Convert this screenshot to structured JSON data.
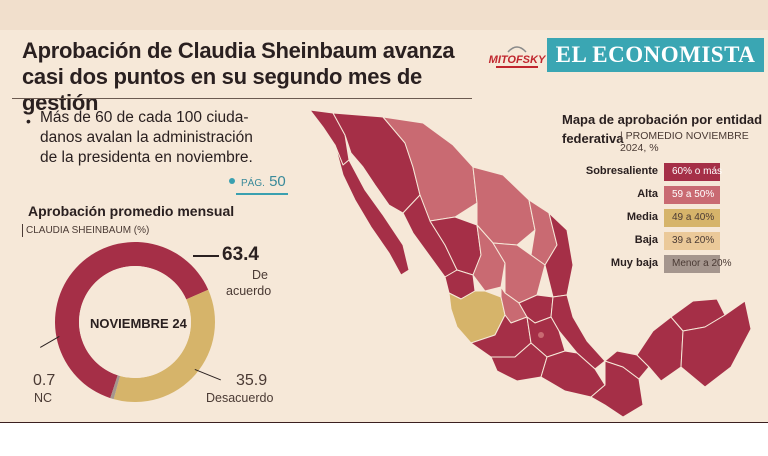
{
  "header": {
    "title_line1": "Aprobación de Claudia Sheinbaum avanza",
    "title_line2": "casi dos puntos en su segundo mes de gestión",
    "logo_mitofsky": "MITOFSKY",
    "logo_economista": "EL ECONOMISTA"
  },
  "bullet": {
    "line1": "Más de 60 de cada 100 ciuda-",
    "line2": "danos avalan la administración",
    "line3": "de la presidenta en noviembre.",
    "page_prefix": "PÁG.",
    "page_number": "50"
  },
  "colors": {
    "sobresaliente": "#a52f47",
    "alta": "#c96a72",
    "media": "#d6b46a",
    "baja": "#ebc999",
    "muy_baja": "#a5968e",
    "accent": "#3aa6b3"
  },
  "chart_data": [
    {
      "type": "pie",
      "title": "Aprobación promedio mensual",
      "subtitle": "CLAUDIA SHEINBAUM (%)",
      "center_label": "NOVIEMBRE 24",
      "slices": [
        {
          "label": "De acuerdo",
          "value": 63.4,
          "value_text": "63.4",
          "color": "#a52f47"
        },
        {
          "label": "Desacuerdo",
          "value": 35.9,
          "value_text": "35.9",
          "color": "#d6b46a"
        },
        {
          "label": "NC",
          "value": 0.7,
          "value_text": "0.7",
          "color": "#a5968e"
        }
      ],
      "labels": {
        "acuerdo_line1": "De",
        "acuerdo_line2": "acuerdo"
      }
    },
    {
      "type": "heatmap",
      "title_line1": "Mapa de aprobación por entidad",
      "title_line2": "federativa",
      "subtitle": "PROMEDIO NOVIEMBRE 2024, %",
      "legend": [
        {
          "label": "Sobresaliente",
          "range": "60% o más",
          "color": "#a52f47"
        },
        {
          "label": "Alta",
          "range": "59 a 50%",
          "color": "#c96a72"
        },
        {
          "label": "Media",
          "range": "49 a 40%",
          "color": "#d6b46a"
        },
        {
          "label": "Baja",
          "range": "39 a 20%",
          "color": "#ebc999"
        },
        {
          "label": "Muy baja",
          "range": "Menor a 20%",
          "color": "#a5968e"
        }
      ]
    }
  ]
}
